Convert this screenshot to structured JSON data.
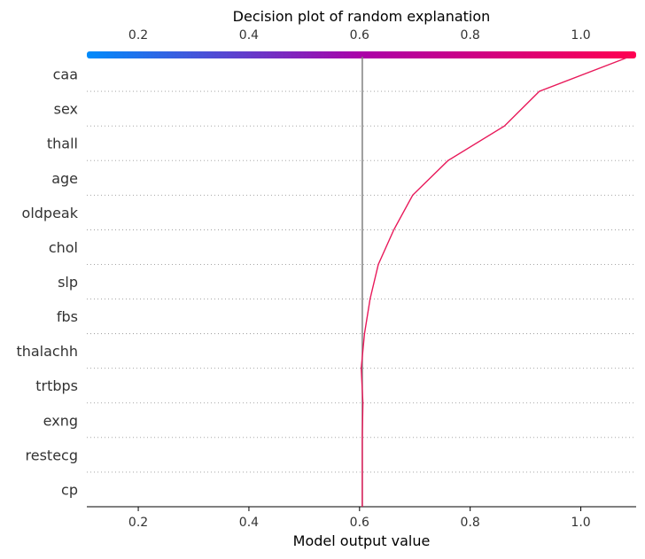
{
  "chart_data": {
    "type": "line",
    "title": "Decision plot of random explanation",
    "xlabel": "Model output value",
    "xlim": [
      0.107,
      1.1
    ],
    "x_ticks": [
      "0.2",
      "0.4",
      "0.6",
      "0.8",
      "1.0"
    ],
    "x_tick_values": [
      0.2,
      0.4,
      0.6,
      0.8,
      1.0
    ],
    "base_value": 0.605,
    "features": [
      "caa",
      "sex",
      "thall",
      "age",
      "oldpeak",
      "chol",
      "slp",
      "fbs",
      "thalachh",
      "trtbps",
      "exng",
      "restecg",
      "cp"
    ],
    "path": [
      1.088,
      0.925,
      0.862,
      0.76,
      0.696,
      0.662,
      0.634,
      0.619,
      0.609,
      0.603,
      0.606,
      0.605,
      0.605,
      0.605
    ],
    "colorbar": {
      "start_color": "#008bfb",
      "mid_color": "#ab02a8",
      "end_color": "#ff0051"
    },
    "line_color": "#e8195a",
    "grid": "dotted rows"
  }
}
